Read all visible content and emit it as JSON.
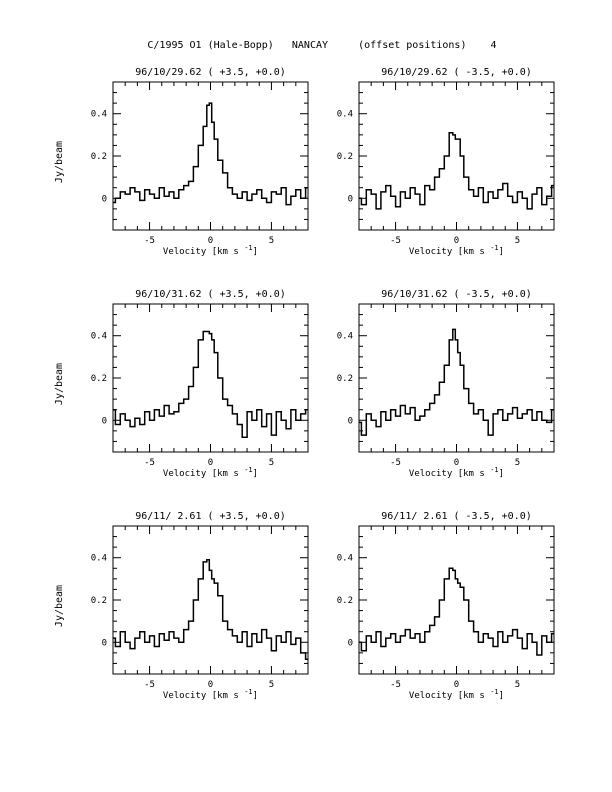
{
  "page_title": "C/1995 O1 (Hale-Bopp)   NANCAY     (offset positions)    4",
  "panel_xlabel": "Velocity [km s",
  "panel_xlabel_sup": "-1",
  "panel_xlabel_end": "]",
  "row_ylabel": "Jy/beam",
  "chart_data": [
    {
      "type": "line",
      "title": "96/10/29.62  ( +3.5, +0.0)",
      "xlabel": "Velocity [km s-1]",
      "ylabel": "Jy/beam",
      "xlim": [
        -8,
        8
      ],
      "ylim": [
        -0.15,
        0.55
      ],
      "xticks": [
        -5,
        0,
        5
      ],
      "xticklabels": [
        "-5",
        "0",
        "5"
      ],
      "yticks": [
        0,
        0.2,
        0.4
      ],
      "yticklabels": [
        "0",
        "0.2",
        "0.4"
      ],
      "series": [
        {
          "x": [
            -8.0,
            -7.6,
            -7.2,
            -6.8,
            -6.4,
            -6.0,
            -5.6,
            -5.2,
            -4.8,
            -4.4,
            -4.0,
            -3.6,
            -3.2,
            -2.8,
            -2.4,
            -2.0,
            -1.6,
            -1.2,
            -0.8,
            -0.4,
            -0.2,
            0.0,
            0.2,
            0.4,
            0.8,
            1.2,
            1.6,
            2.0,
            2.4,
            2.8,
            3.2,
            3.6,
            4.0,
            4.4,
            4.8,
            5.2,
            5.6,
            6.0,
            6.4,
            6.8,
            7.2,
            7.6,
            8.0
          ],
          "values": [
            -0.02,
            0.0,
            0.03,
            0.02,
            0.05,
            0.03,
            -0.01,
            0.04,
            0.02,
            0.0,
            0.05,
            0.01,
            0.03,
            0.0,
            0.04,
            0.06,
            0.08,
            0.15,
            0.25,
            0.34,
            0.44,
            0.45,
            0.36,
            0.28,
            0.18,
            0.12,
            0.05,
            0.02,
            0.0,
            0.03,
            -0.01,
            0.02,
            0.04,
            0.0,
            -0.02,
            0.03,
            0.02,
            0.05,
            -0.03,
            0.01,
            0.04,
            0.0,
            0.05
          ]
        }
      ]
    },
    {
      "type": "line",
      "title": "96/10/29.62  ( -3.5, +0.0)",
      "xlabel": "Velocity [km s-1]",
      "ylabel": "",
      "xlim": [
        -8,
        8
      ],
      "ylim": [
        -0.15,
        0.55
      ],
      "xticks": [
        -5,
        0,
        5
      ],
      "xticklabels": [
        "-5",
        "0",
        "5"
      ],
      "yticks": [
        0,
        0.2,
        0.4
      ],
      "yticklabels": [
        "0",
        "0.2",
        "0.4"
      ],
      "series": [
        {
          "x": [
            -8.0,
            -7.6,
            -7.2,
            -6.8,
            -6.4,
            -6.0,
            -5.6,
            -5.2,
            -4.8,
            -4.4,
            -4.0,
            -3.6,
            -3.2,
            -2.8,
            -2.4,
            -2.0,
            -1.6,
            -1.2,
            -0.8,
            -0.4,
            -0.2,
            0.0,
            0.2,
            0.4,
            0.8,
            1.2,
            1.6,
            2.0,
            2.4,
            2.8,
            3.2,
            3.6,
            4.0,
            4.4,
            4.8,
            5.2,
            5.6,
            6.0,
            6.4,
            6.8,
            7.2,
            7.6,
            8.0
          ],
          "values": [
            0.0,
            -0.03,
            0.04,
            0.02,
            -0.05,
            0.03,
            0.06,
            0.01,
            -0.04,
            0.03,
            0.0,
            0.05,
            0.02,
            -0.03,
            0.06,
            0.04,
            0.1,
            0.14,
            0.2,
            0.31,
            0.3,
            0.28,
            0.28,
            0.2,
            0.1,
            0.04,
            0.01,
            0.05,
            -0.02,
            0.03,
            0.0,
            0.04,
            0.07,
            0.01,
            -0.02,
            0.03,
            0.0,
            -0.05,
            0.02,
            0.05,
            -0.03,
            0.01,
            0.06
          ]
        }
      ]
    },
    {
      "type": "line",
      "title": "96/10/31.62  ( +3.5, +0.0)",
      "xlabel": "Velocity [km s-1]",
      "ylabel": "Jy/beam",
      "xlim": [
        -8,
        8
      ],
      "ylim": [
        -0.15,
        0.55
      ],
      "xticks": [
        -5,
        0,
        5
      ],
      "xticklabels": [
        "-5",
        "0",
        "5"
      ],
      "yticks": [
        0,
        0.2,
        0.4
      ],
      "yticklabels": [
        "0",
        "0.2",
        "0.4"
      ],
      "series": [
        {
          "x": [
            -8.0,
            -7.6,
            -7.2,
            -6.8,
            -6.4,
            -6.0,
            -5.6,
            -5.2,
            -4.8,
            -4.4,
            -4.0,
            -3.6,
            -3.2,
            -2.8,
            -2.4,
            -2.0,
            -1.6,
            -1.2,
            -0.8,
            -0.4,
            -0.2,
            0.0,
            0.2,
            0.4,
            0.8,
            1.2,
            1.6,
            2.0,
            2.4,
            2.8,
            3.2,
            3.6,
            4.0,
            4.4,
            4.8,
            5.2,
            5.6,
            6.0,
            6.4,
            6.8,
            7.2,
            7.6,
            8.0
          ],
          "values": [
            0.05,
            -0.02,
            0.03,
            0.0,
            -0.03,
            0.01,
            -0.02,
            0.04,
            0.0,
            0.05,
            0.02,
            0.07,
            0.03,
            0.04,
            0.08,
            0.1,
            0.16,
            0.25,
            0.38,
            0.42,
            0.42,
            0.41,
            0.38,
            0.32,
            0.2,
            0.1,
            0.07,
            0.03,
            -0.02,
            -0.08,
            0.04,
            0.0,
            0.05,
            -0.03,
            0.03,
            -0.07,
            0.04,
            0.0,
            -0.04,
            0.05,
            0.0,
            0.03,
            0.05
          ]
        }
      ]
    },
    {
      "type": "line",
      "title": "96/10/31.62  ( -3.5, +0.0)",
      "xlabel": "Velocity [km s-1]",
      "ylabel": "",
      "xlim": [
        -8,
        8
      ],
      "ylim": [
        -0.15,
        0.55
      ],
      "xticks": [
        -5,
        0,
        5
      ],
      "xticklabels": [
        "-5",
        "0",
        "5"
      ],
      "yticks": [
        0,
        0.2,
        0.4
      ],
      "yticklabels": [
        "0",
        "0.2",
        "0.4"
      ],
      "series": [
        {
          "x": [
            -8.0,
            -7.6,
            -7.2,
            -6.8,
            -6.4,
            -6.0,
            -5.6,
            -5.2,
            -4.8,
            -4.4,
            -4.0,
            -3.6,
            -3.2,
            -2.8,
            -2.4,
            -2.0,
            -1.6,
            -1.2,
            -0.8,
            -0.4,
            -0.2,
            0.0,
            0.2,
            0.4,
            0.8,
            1.2,
            1.6,
            2.0,
            2.4,
            2.8,
            3.2,
            3.6,
            4.0,
            4.4,
            4.8,
            5.2,
            5.6,
            6.0,
            6.4,
            6.8,
            7.2,
            7.6,
            8.0
          ],
          "values": [
            -0.01,
            -0.07,
            0.03,
            0.0,
            -0.03,
            0.04,
            0.0,
            0.05,
            0.02,
            0.07,
            0.03,
            0.06,
            0.0,
            0.02,
            0.05,
            0.08,
            0.12,
            0.18,
            0.26,
            0.38,
            0.43,
            0.38,
            0.32,
            0.26,
            0.15,
            0.08,
            0.03,
            0.05,
            0.0,
            -0.07,
            0.03,
            0.05,
            0.0,
            0.03,
            0.06,
            0.01,
            0.03,
            0.05,
            0.0,
            0.04,
            0.0,
            -0.01,
            0.05
          ]
        }
      ]
    },
    {
      "type": "line",
      "title": "96/11/ 2.61  ( +3.5, +0.0)",
      "xlabel": "Velocity [km s-1]",
      "ylabel": "Jy/beam",
      "xlim": [
        -8,
        8
      ],
      "ylim": [
        -0.15,
        0.55
      ],
      "xticks": [
        -5,
        0,
        5
      ],
      "xticklabels": [
        "-5",
        "0",
        "5"
      ],
      "yticks": [
        0,
        0.2,
        0.4
      ],
      "yticklabels": [
        "0",
        "0.2",
        "0.4"
      ],
      "series": [
        {
          "x": [
            -8.0,
            -7.6,
            -7.2,
            -6.8,
            -6.4,
            -6.0,
            -5.6,
            -5.2,
            -4.8,
            -4.4,
            -4.0,
            -3.6,
            -3.2,
            -2.8,
            -2.4,
            -2.0,
            -1.6,
            -1.2,
            -0.8,
            -0.4,
            -0.2,
            0.0,
            0.2,
            0.4,
            0.8,
            1.2,
            1.6,
            2.0,
            2.4,
            2.8,
            3.2,
            3.6,
            4.0,
            4.4,
            4.8,
            5.2,
            5.6,
            6.0,
            6.4,
            6.8,
            7.2,
            7.6,
            8.0
          ],
          "values": [
            0.02,
            -0.02,
            0.05,
            0.0,
            -0.03,
            0.02,
            0.05,
            0.0,
            0.03,
            -0.02,
            0.04,
            0.01,
            0.05,
            0.02,
            0.0,
            0.06,
            0.1,
            0.2,
            0.3,
            0.38,
            0.39,
            0.34,
            0.3,
            0.28,
            0.22,
            0.1,
            0.06,
            0.03,
            0.0,
            0.05,
            -0.02,
            0.04,
            0.0,
            0.06,
            0.02,
            -0.04,
            0.03,
            0.0,
            0.05,
            -0.01,
            0.02,
            -0.05,
            -0.08
          ]
        }
      ]
    },
    {
      "type": "line",
      "title": "96/11/ 2.61  ( -3.5, +0.0)",
      "xlabel": "Velocity [km s-1]",
      "ylabel": "",
      "xlim": [
        -8,
        8
      ],
      "ylim": [
        -0.15,
        0.55
      ],
      "xticks": [
        -5,
        0,
        5
      ],
      "xticklabels": [
        "-5",
        "0",
        "5"
      ],
      "yticks": [
        0,
        0.2,
        0.4
      ],
      "yticklabels": [
        "0",
        "0.2",
        "0.4"
      ],
      "series": [
        {
          "x": [
            -8.0,
            -7.6,
            -7.2,
            -6.8,
            -6.4,
            -6.0,
            -5.6,
            -5.2,
            -4.8,
            -4.4,
            -4.0,
            -3.6,
            -3.2,
            -2.8,
            -2.4,
            -2.0,
            -1.6,
            -1.2,
            -0.8,
            -0.4,
            -0.2,
            0.0,
            0.2,
            0.4,
            0.8,
            1.2,
            1.6,
            2.0,
            2.4,
            2.8,
            3.2,
            3.6,
            4.0,
            4.4,
            4.8,
            5.2,
            5.6,
            6.0,
            6.4,
            6.8,
            7.2,
            7.6,
            8.0
          ],
          "values": [
            0.0,
            -0.04,
            0.03,
            0.0,
            0.05,
            -0.02,
            0.02,
            0.04,
            0.0,
            0.03,
            0.06,
            0.02,
            0.04,
            0.0,
            0.05,
            0.08,
            0.12,
            0.2,
            0.3,
            0.35,
            0.34,
            0.3,
            0.28,
            0.26,
            0.2,
            0.1,
            0.05,
            0.0,
            0.04,
            0.02,
            -0.02,
            0.05,
            0.0,
            0.03,
            0.06,
            0.02,
            -0.03,
            0.04,
            0.0,
            -0.06,
            0.03,
            0.0,
            0.04
          ]
        }
      ]
    }
  ]
}
